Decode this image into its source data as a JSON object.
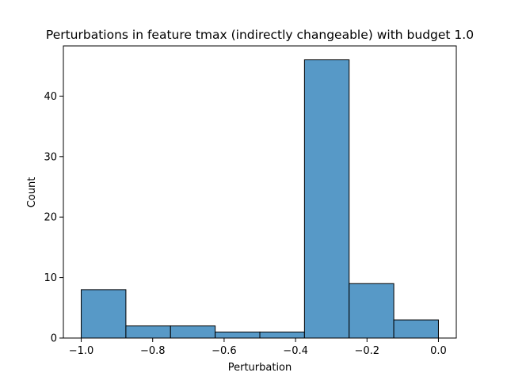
{
  "chart_data": {
    "type": "bar",
    "title": "Perturbations in feature tmax (indirectly changeable) with budget 1.0",
    "xlabel": "Perturbation",
    "ylabel": "Count",
    "bins": [
      {
        "start": -1.0,
        "end": -0.875,
        "count": 8
      },
      {
        "start": -0.875,
        "end": -0.75,
        "count": 2
      },
      {
        "start": -0.75,
        "end": -0.625,
        "count": 2
      },
      {
        "start": -0.625,
        "end": -0.5,
        "count": 1
      },
      {
        "start": -0.5,
        "end": -0.375,
        "count": 1
      },
      {
        "start": -0.375,
        "end": -0.25,
        "count": 46
      },
      {
        "start": -0.25,
        "end": -0.125,
        "count": 9
      },
      {
        "start": -0.125,
        "end": 0.0,
        "count": 3
      }
    ],
    "xlim": [
      -1.05,
      0.05
    ],
    "ylim": [
      0,
      48.3
    ],
    "xticks": [
      {
        "value": -1.0,
        "label": "−1.0"
      },
      {
        "value": -0.8,
        "label": "−0.8"
      },
      {
        "value": -0.6,
        "label": "−0.6"
      },
      {
        "value": -0.4,
        "label": "−0.4"
      },
      {
        "value": -0.2,
        "label": "−0.2"
      },
      {
        "value": 0.0,
        "label": "0.0"
      }
    ],
    "yticks": [
      {
        "value": 0,
        "label": "0"
      },
      {
        "value": 10,
        "label": "10"
      },
      {
        "value": 20,
        "label": "20"
      },
      {
        "value": 30,
        "label": "30"
      },
      {
        "value": 40,
        "label": "40"
      }
    ],
    "grid": false,
    "bar_color": "#5799c7",
    "edge_color": "#000000"
  }
}
